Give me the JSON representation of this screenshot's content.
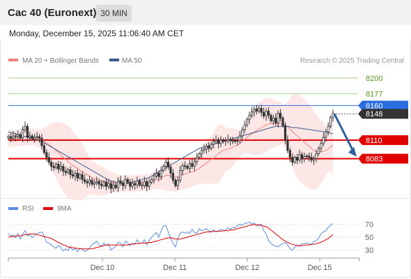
{
  "header": {
    "title": "Cac 40 (Euronext)",
    "timeframe": "30 MIN",
    "datetime": "Monday, December 15, 2025 11:06:40 AM CET"
  },
  "legend": {
    "ma20": "MA 20 + Bollinger Bands",
    "ma50": "MA 50",
    "credit": "Research © 2025 Trading Central",
    "rsi": "RSI",
    "rsi_ma": "9MA"
  },
  "colors": {
    "candle": "#333333",
    "ma20": "#f08080",
    "ma50": "#3a5a8c",
    "band": "#fde2e2",
    "resistance": "#a8d08d",
    "pivot": "#2a6de0",
    "support": "#e00000",
    "arrow": "#2c5fa0",
    "rsi": "#5b8de0",
    "rsi_ma": "#e00000"
  },
  "chart_data": [
    {
      "type": "candlestick",
      "title": "",
      "y_range": [
        8030,
        8220
      ],
      "x_axis_labels": [
        "Dec 10",
        "Dec 11",
        "Dec 12",
        "Dec 15"
      ],
      "levels": [
        {
          "value": 8200,
          "label": "8200",
          "kind": "resistance"
        },
        {
          "value": 8177,
          "label": "8177",
          "kind": "resistance"
        },
        {
          "value": 8160,
          "label": "8160",
          "kind": "pivot"
        },
        {
          "value": 8148,
          "label": "8148",
          "kind": "last"
        },
        {
          "value": 8110,
          "label": "8110",
          "kind": "support"
        },
        {
          "value": 8083,
          "label": "8083",
          "kind": "support"
        }
      ],
      "close": [
        8115,
        8113,
        8116,
        8115,
        8118,
        8113,
        8125,
        8130,
        8114,
        8116,
        8112,
        8114,
        8115,
        8113,
        8102,
        8092,
        8085,
        8078,
        8072,
        8070,
        8075,
        8068,
        8072,
        8065,
        8063,
        8067,
        8060,
        8058,
        8062,
        8055,
        8060,
        8053,
        8050,
        8048,
        8052,
        8046,
        8048,
        8050,
        8046,
        8044,
        8049,
        8043,
        8047,
        8040,
        8045,
        8041,
        8051,
        8048,
        8044,
        8053,
        8049,
        8043,
        8047,
        8045,
        8051,
        8045,
        8044,
        8050,
        8043,
        8049,
        8053,
        8058,
        8062,
        8057,
        8066,
        8072,
        8078,
        8071,
        8062,
        8052,
        8044,
        8052,
        8066,
        8073,
        8072,
        8069,
        8076,
        8072,
        8079,
        8085,
        8090,
        8095,
        8097,
        8101,
        8098,
        8104,
        8108,
        8110,
        8105,
        8110,
        8108,
        8109,
        8111,
        8109,
        8109,
        8108,
        8109,
        8116,
        8125,
        8132,
        8140,
        8146,
        8151,
        8155,
        8152,
        8156,
        8150,
        8145,
        8152,
        8146,
        8138,
        8142,
        8135,
        8149,
        8142,
        8131,
        8110,
        8095,
        8085,
        8078,
        8085,
        8081,
        8089,
        8083,
        8086,
        8087,
        8085,
        8081,
        8083,
        8090,
        8098,
        8105,
        8114,
        8122,
        8130,
        8143,
        8149
      ],
      "ma20": [
        8112,
        8112,
        8112,
        8113,
        8113,
        8114,
        8114,
        8115,
        8115,
        8115,
        8115,
        8114,
        8113,
        8112,
        8110,
        8108,
        8106,
        8104,
        8101,
        8098,
        8095,
        8092,
        8088,
        8085,
        8082,
        8079,
        8076,
        8073,
        8071,
        8069,
        8066,
        8064,
        8062,
        8060,
        8058,
        8056,
        8054,
        8053,
        8052,
        8051,
        8050,
        8050,
        8049,
        8049,
        8048,
        8048,
        8047,
        8047,
        8047,
        8047,
        8047,
        8047,
        8047,
        8047,
        8048,
        8048,
        8048,
        8048,
        8048,
        8049,
        8050,
        8051,
        8052,
        8053,
        8055,
        8057,
        8059,
        8059,
        8058,
        8057,
        8057,
        8057,
        8058,
        8060,
        8061,
        8062,
        8063,
        8064,
        8065,
        8067,
        8069,
        8072,
        8074,
        8077,
        8079,
        8082,
        8084,
        8087,
        8090,
        8093,
        8095,
        8096,
        8097,
        8098,
        8100,
        8101,
        8103,
        8105,
        8108,
        8111,
        8114,
        8117,
        8119,
        8122,
        8124,
        8126,
        8128,
        8130,
        8132,
        8133,
        8134,
        8134,
        8134,
        8134,
        8134,
        8133,
        8131,
        8129,
        8126,
        8122,
        8119,
        8116,
        8113,
        8110,
        8107,
        8104,
        8101,
        8098,
        8095,
        8093,
        8093,
        8093,
        8094,
        8095,
        8097,
        8100,
        8103
      ],
      "ma50": [
        8122,
        8121,
        8120,
        8119,
        8118,
        8117,
        8116,
        8115,
        8114,
        8113,
        8112,
        8111,
        8110,
        8109,
        8108,
        8106,
        8104,
        8102,
        8100,
        8098,
        8096,
        8094,
        8092,
        8090,
        8088,
        8086,
        8084,
        8082,
        8080,
        8078,
        8076,
        8074,
        8072,
        8070,
        8068,
        8066,
        8064,
        8062,
        8060,
        8058,
        8056,
        8054,
        8052,
        8051,
        8050,
        8049,
        8048,
        8048,
        8048,
        8048,
        8048,
        8049,
        8049,
        8050,
        8051,
        8052,
        8053,
        8054,
        8055,
        8056,
        8058,
        8060,
        8062,
        8064,
        8066,
        8068,
        8070,
        8072,
        8074,
        8076,
        8078,
        8080,
        8082,
        8084,
        8086,
        8088,
        8090,
        8092,
        8094,
        8096,
        8098,
        8099,
        8100,
        8101,
        8102,
        8103,
        8104,
        8105,
        8106,
        8107,
        8108,
        8109,
        8110,
        8111,
        8112,
        8113,
        8114,
        8115,
        8116,
        8117,
        8118,
        8119,
        8120,
        8121,
        8122,
        8123,
        8124,
        8125,
        8126,
        8127,
        8128,
        8129,
        8130,
        8130,
        8130,
        8130,
        8130,
        8130,
        8129,
        8128,
        8128,
        8128,
        8127,
        8127,
        8126,
        8126,
        8125,
        8125,
        8124,
        8124,
        8123,
        8123,
        8122,
        8122,
        8121,
        8120,
        8119
      ],
      "forecast_arrow": {
        "from": 8148,
        "to": 8088
      }
    },
    {
      "type": "line",
      "title": "",
      "y_range": [
        20,
        80
      ],
      "y_ticks": [
        70,
        50,
        30
      ],
      "series": [
        {
          "name": "RSI",
          "values": [
            55,
            52,
            53,
            49,
            56,
            47,
            55,
            60,
            52,
            54,
            49,
            53,
            55,
            57,
            58,
            52,
            42,
            41,
            38,
            35,
            33,
            37,
            34,
            29,
            32,
            29,
            36,
            30,
            33,
            28,
            33,
            31,
            28,
            30,
            33,
            39,
            41,
            44,
            38,
            36,
            41,
            37,
            40,
            30,
            33,
            36,
            42,
            41,
            35,
            44,
            41,
            37,
            41,
            39,
            46,
            40,
            41,
            46,
            38,
            45,
            50,
            54,
            57,
            50,
            60,
            67,
            68,
            58,
            48,
            40,
            35,
            48,
            56,
            58,
            56,
            58,
            56,
            62,
            57,
            56,
            63,
            60,
            61,
            63,
            60,
            58,
            61,
            58,
            60,
            62,
            60,
            61,
            64,
            62,
            65,
            64,
            68,
            70,
            68,
            71,
            72,
            73,
            70,
            72,
            68,
            67,
            70,
            60,
            55,
            45,
            40,
            38,
            36,
            35,
            38,
            40,
            42,
            38,
            32,
            30,
            35,
            38,
            36,
            40,
            40,
            41,
            40,
            39,
            43,
            45,
            49,
            55,
            58,
            60,
            65,
            68,
            71
          ]
        },
        {
          "name": "9MA",
          "values": [
            50,
            51,
            51,
            52,
            52,
            52,
            53,
            54,
            54,
            55,
            55,
            55,
            54,
            53,
            52,
            51,
            50,
            49,
            48,
            46,
            44,
            42,
            40,
            38,
            37,
            35,
            34,
            34,
            33,
            33,
            32,
            32,
            32,
            32,
            32,
            32,
            33,
            34,
            35,
            36,
            37,
            38,
            38,
            38,
            38,
            38,
            38,
            38,
            38,
            38,
            38,
            39,
            39,
            40,
            40,
            40,
            41,
            41,
            41,
            42,
            42,
            43,
            44,
            45,
            46,
            47,
            48,
            49,
            49,
            48,
            47,
            47,
            47,
            48,
            49,
            50,
            51,
            52,
            53,
            54,
            55,
            56,
            57,
            58,
            58,
            58,
            59,
            59,
            59,
            59,
            60,
            60,
            60,
            61,
            61,
            62,
            63,
            64,
            65,
            66,
            67,
            68,
            69,
            69,
            69,
            69,
            68,
            67,
            66,
            64,
            61,
            58,
            55,
            52,
            49,
            46,
            44,
            42,
            40,
            39,
            38,
            37,
            37,
            37,
            38,
            38,
            38,
            39,
            39,
            40,
            41,
            42,
            44,
            46,
            48,
            51,
            54
          ]
        }
      ]
    }
  ]
}
